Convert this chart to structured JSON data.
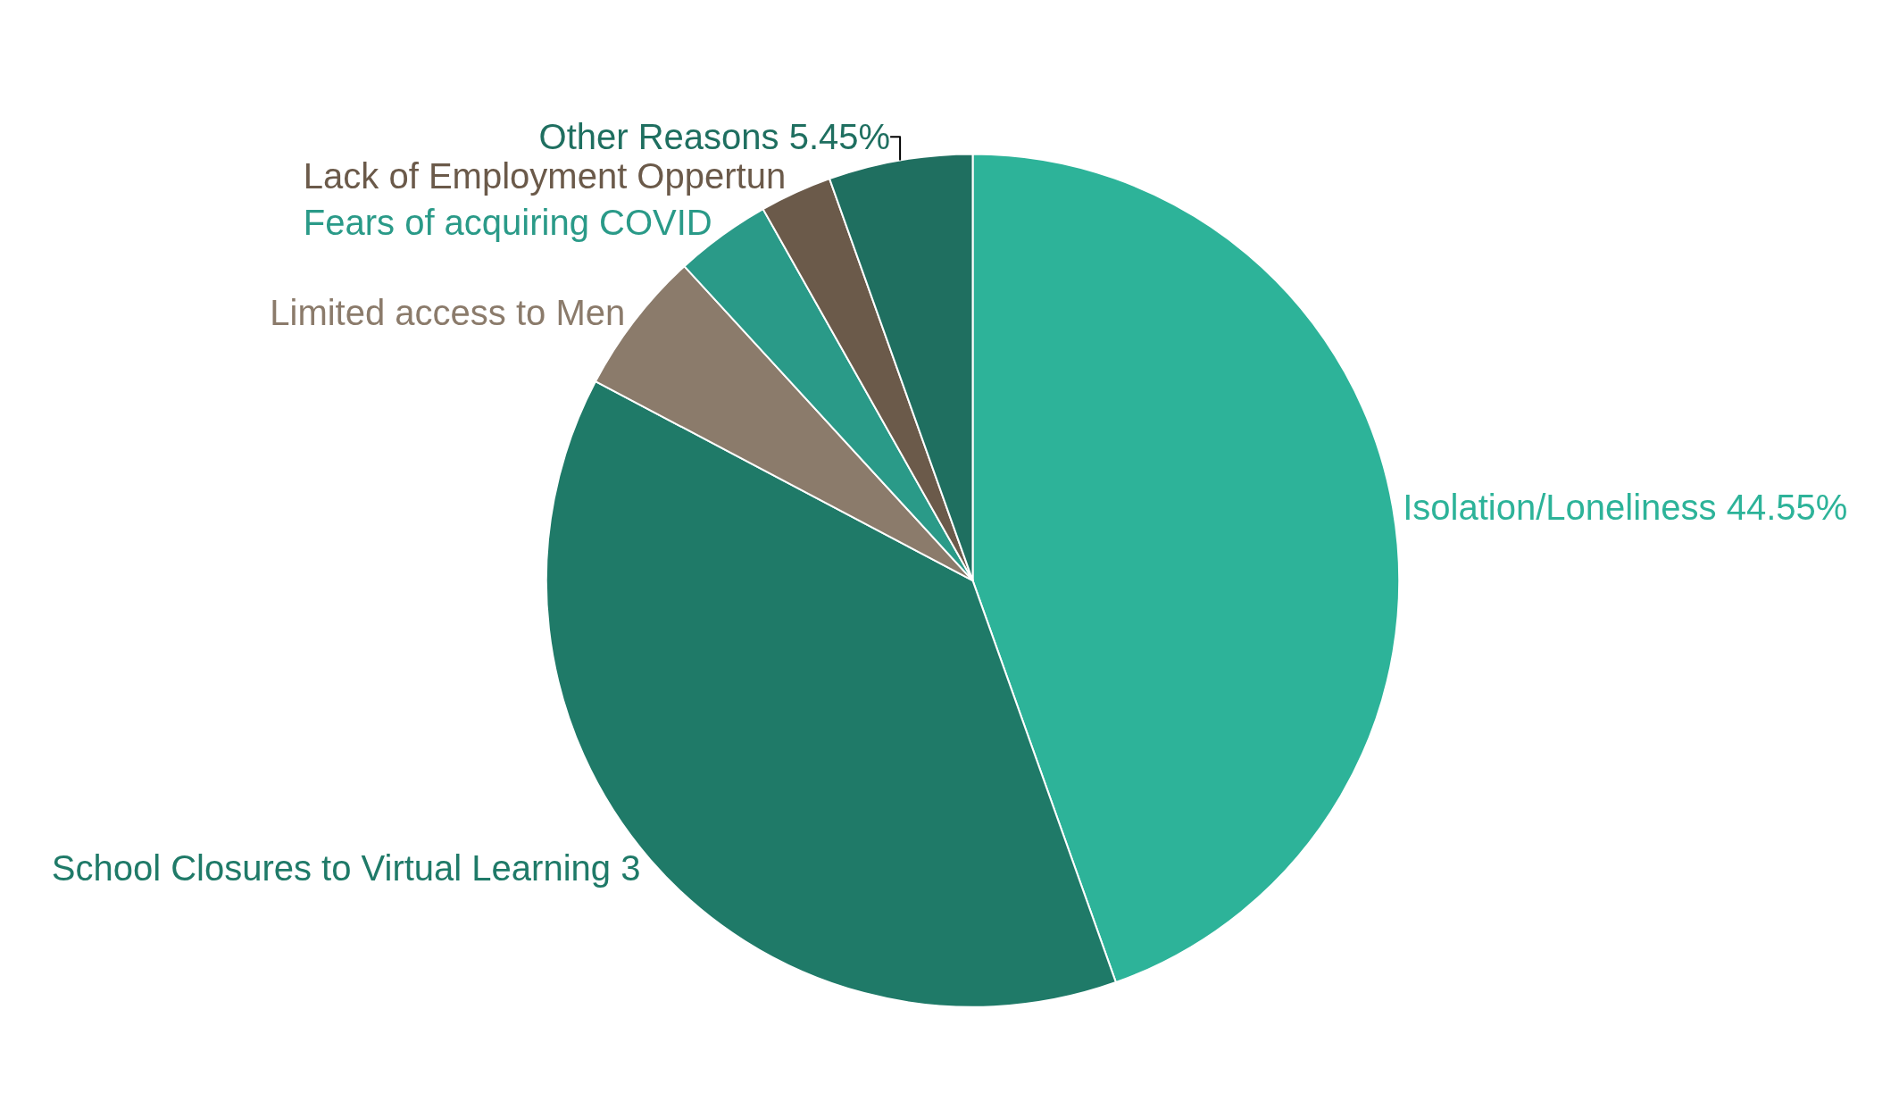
{
  "chart_data": {
    "type": "pie",
    "categories": [
      "Isolation/Loneliness",
      "School Closures to Virtual Learning 3",
      "Limited access to Men",
      "Fears of acquiring COVID",
      "Lack of Employment Oppertun",
      "Other Reasons"
    ],
    "values": [
      44.55,
      38.18,
      5.45,
      3.64,
      2.73,
      5.45
    ],
    "value_labels": [
      "44.55%",
      null,
      null,
      null,
      null,
      "5.45%"
    ],
    "colors": [
      "#2db399",
      "#1f7a68",
      "#8b7b6b",
      "#2a9a88",
      "#6b5a4a",
      "#1f6f60"
    ]
  }
}
